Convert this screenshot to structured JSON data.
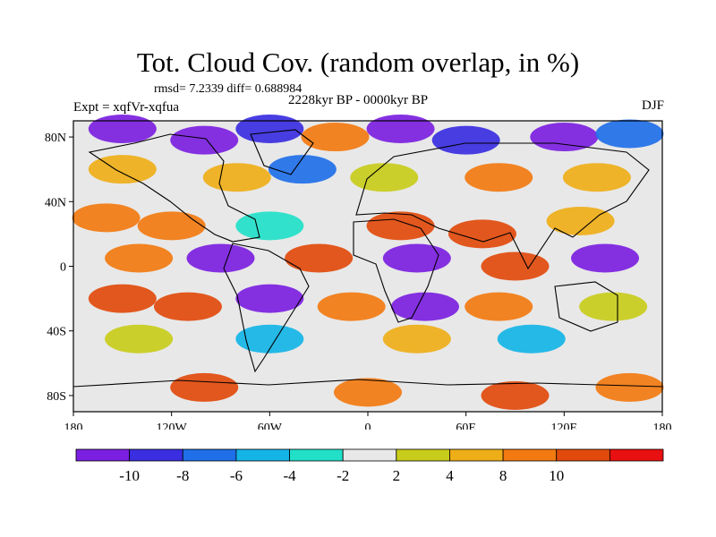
{
  "title": "Tot. Cloud Cov. (random overlap, in %)",
  "stats": "rmsd= 7.2339 diff= 0.688984",
  "experiment": "Expt = xqfVr-xqfua",
  "period": "2228kyr BP - 0000kyr BP",
  "season": "DJF",
  "map": {
    "projection": "equirectangular",
    "lon_range": [
      -180,
      180
    ],
    "lat_range": [
      -90,
      90
    ],
    "x_ticks": [
      {
        "lon": -180,
        "label": "180"
      },
      {
        "lon": -120,
        "label": "120W"
      },
      {
        "lon": -60,
        "label": "60W"
      },
      {
        "lon": 0,
        "label": "0"
      },
      {
        "lon": 60,
        "label": "60E"
      },
      {
        "lon": 120,
        "label": "120E"
      },
      {
        "lon": 180,
        "label": "180"
      }
    ],
    "y_ticks": [
      {
        "lat": 80,
        "label": "80N"
      },
      {
        "lat": 40,
        "label": "40N"
      },
      {
        "lat": 0,
        "label": "0"
      },
      {
        "lat": -40,
        "label": "40S"
      },
      {
        "lat": -80,
        "label": "80S"
      }
    ]
  },
  "colorbar": {
    "bins": [
      {
        "color": "#7b1fe0",
        "label": "-10"
      },
      {
        "color": "#3a2ee0",
        "label": "-8"
      },
      {
        "color": "#1f6fe8",
        "label": "-6"
      },
      {
        "color": "#14b4e6",
        "label": "-4"
      },
      {
        "color": "#22e0c8",
        "label": "-2"
      },
      {
        "color": "#e8e8e8",
        "label": "2"
      },
      {
        "color": "#c8cc1a",
        "label": "4"
      },
      {
        "color": "#eeae18",
        "label": "8"
      },
      {
        "color": "#f27a10",
        "label": "10"
      },
      {
        "color": "#e14a0c",
        "label": ""
      },
      {
        "color": "#e81010",
        "label": ""
      }
    ]
  },
  "fields": [
    {
      "lon": -150,
      "lat": 85,
      "value": -10
    },
    {
      "lon": -100,
      "lat": 78,
      "value": -10
    },
    {
      "lon": -60,
      "lat": 85,
      "value": -8
    },
    {
      "lon": -20,
      "lat": 80,
      "value": 8
    },
    {
      "lon": 20,
      "lat": 85,
      "value": -10
    },
    {
      "lon": 60,
      "lat": 78,
      "value": -8
    },
    {
      "lon": 120,
      "lat": 80,
      "value": -10
    },
    {
      "lon": 160,
      "lat": 82,
      "value": -6
    },
    {
      "lon": -150,
      "lat": 60,
      "value": 6
    },
    {
      "lon": -80,
      "lat": 55,
      "value": 6
    },
    {
      "lon": -40,
      "lat": 60,
      "value": -6
    },
    {
      "lon": 10,
      "lat": 55,
      "value": 4
    },
    {
      "lon": 80,
      "lat": 55,
      "value": 7
    },
    {
      "lon": 140,
      "lat": 55,
      "value": 5
    },
    {
      "lon": -160,
      "lat": 30,
      "value": 7
    },
    {
      "lon": -120,
      "lat": 25,
      "value": 8
    },
    {
      "lon": -60,
      "lat": 25,
      "value": -2
    },
    {
      "lon": 20,
      "lat": 25,
      "value": 9
    },
    {
      "lon": 70,
      "lat": 20,
      "value": 10
    },
    {
      "lon": 130,
      "lat": 28,
      "value": 6
    },
    {
      "lon": -140,
      "lat": 5,
      "value": 8
    },
    {
      "lon": -90,
      "lat": 5,
      "value": -10
    },
    {
      "lon": -30,
      "lat": 5,
      "value": 9
    },
    {
      "lon": 30,
      "lat": 5,
      "value": -10
    },
    {
      "lon": 90,
      "lat": 0,
      "value": 10
    },
    {
      "lon": 145,
      "lat": 5,
      "value": -10
    },
    {
      "lon": -150,
      "lat": -20,
      "value": 10
    },
    {
      "lon": -110,
      "lat": -25,
      "value": 10
    },
    {
      "lon": -60,
      "lat": -20,
      "value": -10
    },
    {
      "lon": -10,
      "lat": -25,
      "value": 8
    },
    {
      "lon": 35,
      "lat": -25,
      "value": -10
    },
    {
      "lon": 80,
      "lat": -25,
      "value": 8
    },
    {
      "lon": 150,
      "lat": -25,
      "value": 4
    },
    {
      "lon": -140,
      "lat": -45,
      "value": 3
    },
    {
      "lon": -60,
      "lat": -45,
      "value": -4
    },
    {
      "lon": 30,
      "lat": -45,
      "value": 6
    },
    {
      "lon": 100,
      "lat": -45,
      "value": -4
    },
    {
      "lon": -100,
      "lat": -75,
      "value": 9
    },
    {
      "lon": 0,
      "lat": -78,
      "value": 7
    },
    {
      "lon": 90,
      "lat": -80,
      "value": 9
    },
    {
      "lon": 160,
      "lat": -75,
      "value": 8
    }
  ]
}
